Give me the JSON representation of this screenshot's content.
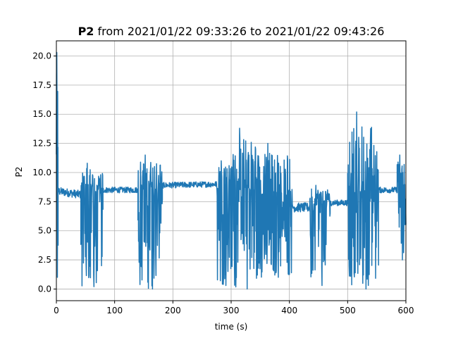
{
  "chart_data": {
    "type": "line",
    "title_bold": "P2",
    "title_rest": " from 2021/01/22 09:33:26 to 2021/01/22 09:43:26",
    "xlabel": "time (s)",
    "ylabel": "P2",
    "xlim": [
      0,
      600
    ],
    "ylim": [
      -1.0,
      21.3
    ],
    "xticks": [
      0,
      100,
      200,
      300,
      400,
      500,
      600
    ],
    "yticks": [
      0.0,
      2.5,
      5.0,
      7.5,
      10.0,
      12.5,
      15.0,
      17.5,
      20.0
    ],
    "xtick_labels": [
      "0",
      "100",
      "200",
      "300",
      "400",
      "500",
      "600"
    ],
    "ytick_labels": [
      "0.0",
      "2.5",
      "5.0",
      "7.5",
      "10.0",
      "12.5",
      "15.0",
      "17.5",
      "20.0"
    ],
    "grid": true,
    "line_color": "#1f77b4",
    "series": [
      {
        "name": "",
        "segments": [
          {
            "t0": 0,
            "t1": 3,
            "type": "burst",
            "base": 8.5,
            "low": 1.0,
            "high": 20.3,
            "step": 0.25
          },
          {
            "t0": 3,
            "t1": 42,
            "type": "noise",
            "base": 8.4,
            "amp": 0.35,
            "trend": -0.3,
            "step": 0.5
          },
          {
            "t0": 42,
            "t1": 80,
            "type": "burst",
            "base": 8.2,
            "low": 0.2,
            "high": 10.8,
            "step": 0.5
          },
          {
            "t0": 80,
            "t1": 140,
            "type": "noise",
            "base": 8.5,
            "amp": 0.25,
            "trend": 0.0,
            "step": 0.5
          },
          {
            "t0": 140,
            "t1": 182,
            "type": "burst",
            "base": 8.5,
            "low": 0.0,
            "high": 11.5,
            "step": 0.5
          },
          {
            "t0": 182,
            "t1": 275,
            "type": "noise",
            "base": 8.9,
            "amp": 0.25,
            "trend": 0.1,
            "step": 0.5
          },
          {
            "t0": 275,
            "t1": 302,
            "type": "burst",
            "base": 8.6,
            "low": 0.3,
            "high": 11.0,
            "step": 0.5
          },
          {
            "t0": 302,
            "t1": 345,
            "type": "burst",
            "base": 8.4,
            "low": 0.0,
            "high": 13.8,
            "step": 0.5
          },
          {
            "t0": 345,
            "t1": 405,
            "type": "burst",
            "base": 7.8,
            "low": 1.0,
            "high": 12.5,
            "step": 0.5
          },
          {
            "t0": 405,
            "t1": 435,
            "type": "noise",
            "base": 7.0,
            "amp": 0.4,
            "trend": 0.0,
            "step": 0.5
          },
          {
            "t0": 435,
            "t1": 470,
            "type": "burst",
            "base": 7.2,
            "low": 0.3,
            "high": 8.9,
            "step": 0.5
          },
          {
            "t0": 470,
            "t1": 500,
            "type": "noise",
            "base": 7.4,
            "amp": 0.25,
            "trend": 0.0,
            "step": 0.5
          },
          {
            "t0": 500,
            "t1": 553,
            "type": "burst",
            "base": 8.0,
            "low": 0.0,
            "high": 15.2,
            "step": 0.5
          },
          {
            "t0": 553,
            "t1": 585,
            "type": "noise",
            "base": 8.5,
            "amp": 0.25,
            "trend": 0.0,
            "step": 0.5
          },
          {
            "t0": 585,
            "t1": 600,
            "type": "burst",
            "base": 8.5,
            "low": 2.5,
            "high": 11.5,
            "step": 0.5
          }
        ]
      }
    ]
  }
}
